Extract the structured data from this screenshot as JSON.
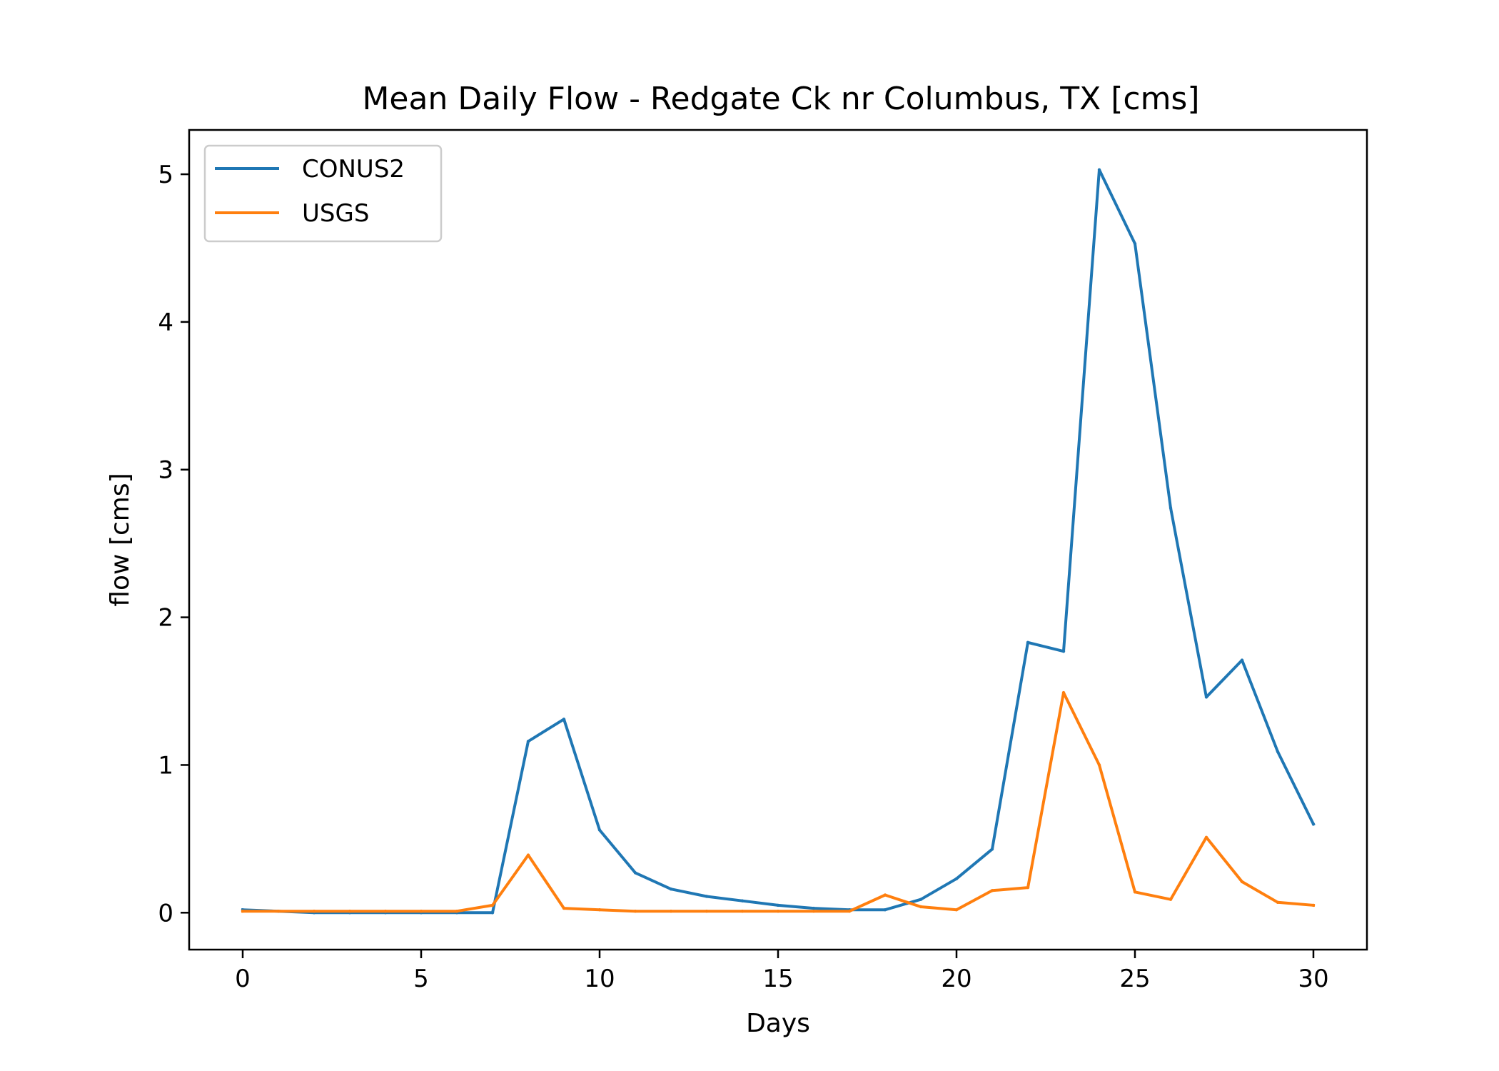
{
  "chart_data": {
    "type": "line",
    "title": "Mean Daily Flow - Redgate Ck nr Columbus, TX [cms]",
    "xlabel": "Days",
    "ylabel": "flow [cms]",
    "xlim": [
      -1.5,
      31.5
    ],
    "ylim": [
      -0.25,
      5.3
    ],
    "xticks": [
      0,
      5,
      10,
      15,
      20,
      25,
      30
    ],
    "yticks": [
      0,
      1,
      2,
      3,
      4,
      5
    ],
    "xtick_labels": [
      "0",
      "5",
      "10",
      "15",
      "20",
      "25",
      "30"
    ],
    "ytick_labels": [
      "0",
      "1",
      "2",
      "3",
      "4",
      "5"
    ],
    "grid": false,
    "legend_position": "upper-left",
    "x": [
      0,
      1,
      2,
      3,
      4,
      5,
      6,
      7,
      8,
      9,
      10,
      11,
      12,
      13,
      14,
      15,
      16,
      17,
      18,
      19,
      20,
      21,
      22,
      23,
      24,
      25,
      26,
      27,
      28,
      29,
      30
    ],
    "series": [
      {
        "name": "CONUS2",
        "color": "#1f77b4",
        "values": [
          0.02,
          0.01,
          0.0,
          0.0,
          0.0,
          0.0,
          0.0,
          0.0,
          1.16,
          1.31,
          0.56,
          0.27,
          0.16,
          0.11,
          0.08,
          0.05,
          0.03,
          0.02,
          0.02,
          0.09,
          0.23,
          0.43,
          1.83,
          1.77,
          5.03,
          4.53,
          2.74,
          1.46,
          1.71,
          1.09,
          0.6
        ]
      },
      {
        "name": "USGS",
        "color": "#ff7f0e",
        "values": [
          0.01,
          0.01,
          0.01,
          0.01,
          0.01,
          0.01,
          0.01,
          0.05,
          0.39,
          0.03,
          0.02,
          0.01,
          0.01,
          0.01,
          0.01,
          0.01,
          0.01,
          0.01,
          0.12,
          0.04,
          0.02,
          0.15,
          0.17,
          1.49,
          1.0,
          0.14,
          0.09,
          0.51,
          0.21,
          0.07,
          0.05
        ]
      }
    ]
  }
}
